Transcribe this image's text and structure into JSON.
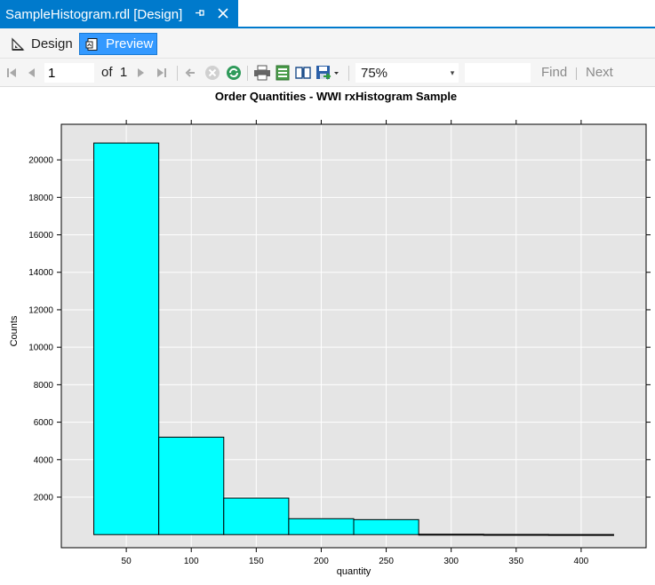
{
  "tab": {
    "title": "SampleHistogram.rdl [Design]",
    "pin_icon": "pin-icon",
    "close_icon": "close-icon"
  },
  "modes": [
    {
      "label": "Design",
      "icon": "design-ruler-icon",
      "active": false
    },
    {
      "label": "Preview",
      "icon": "preview-icon",
      "active": true
    }
  ],
  "toolbar": {
    "page_value": "1",
    "of_label": "of",
    "page_total": "1",
    "zoom": "75%",
    "find_value": "",
    "find_label": "Find",
    "next_label": "Next"
  },
  "colors": {
    "accent": "#007acc",
    "bar_fill": "#00ffff",
    "panel_bg": "#e5e5e5"
  },
  "chart_data": {
    "type": "bar",
    "title": "Order Quantities - WWI rxHistogram Sample",
    "xlabel": "quantity",
    "ylabel": "Counts",
    "bins": [
      {
        "x0": 25,
        "x1": 75,
        "count": 20900
      },
      {
        "x0": 75,
        "x1": 125,
        "count": 5200
      },
      {
        "x0": 125,
        "x1": 175,
        "count": 1950
      },
      {
        "x0": 175,
        "x1": 225,
        "count": 850
      },
      {
        "x0": 225,
        "x1": 275,
        "count": 800
      },
      {
        "x0": 275,
        "x1": 325,
        "count": 20
      },
      {
        "x0": 325,
        "x1": 375,
        "count": 10
      },
      {
        "x0": 375,
        "x1": 425,
        "count": 5
      }
    ],
    "xticks": [
      50,
      100,
      150,
      200,
      250,
      300,
      350,
      400
    ],
    "yticks": [
      2000,
      4000,
      6000,
      8000,
      10000,
      12000,
      14000,
      16000,
      18000,
      20000
    ],
    "xlim": [
      0,
      450
    ],
    "ylim": [
      -700,
      21900
    ],
    "grid": true
  }
}
